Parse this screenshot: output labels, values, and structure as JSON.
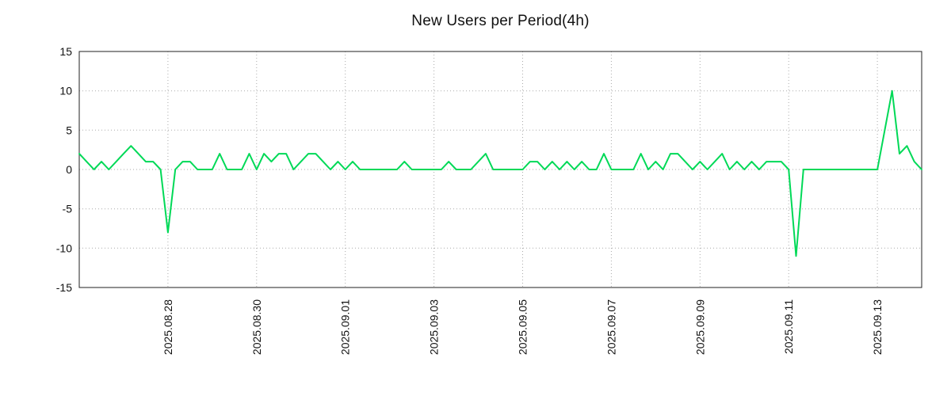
{
  "title": "New Users per Period(4h)",
  "colors": {
    "line": "#00d957",
    "grid": "#aaaaaa",
    "frame": "#222222",
    "text": "#111111",
    "background": "#ffffff"
  },
  "chart_data": {
    "type": "line",
    "title": "New Users per Period(4h)",
    "xlabel": "",
    "ylabel": "",
    "period": "4h",
    "grid": true,
    "legend": false,
    "ylim": [
      -15,
      15
    ],
    "yticks": [
      15,
      10,
      5,
      0,
      -5,
      -10,
      -15
    ],
    "x_tick_labels": [
      "2025.08.28",
      "2025.08.30",
      "2025.09.01",
      "2025.09.03",
      "2025.09.05",
      "2025.09.07",
      "2025.09.09",
      "2025.09.11",
      "2025.09.13"
    ],
    "x_tick_indices": [
      12,
      24,
      36,
      48,
      60,
      72,
      84,
      96,
      108
    ],
    "values": [
      2,
      1,
      0,
      1,
      0,
      1,
      2,
      3,
      2,
      1,
      1,
      0,
      -8,
      0,
      1,
      1,
      0,
      0,
      0,
      2,
      0,
      0,
      0,
      2,
      0,
      2,
      1,
      2,
      2,
      0,
      1,
      2,
      2,
      1,
      0,
      1,
      0,
      1,
      0,
      0,
      0,
      0,
      0,
      0,
      1,
      0,
      0,
      0,
      0,
      0,
      1,
      0,
      0,
      0,
      1,
      2,
      0,
      0,
      0,
      0,
      0,
      1,
      1,
      0,
      1,
      0,
      1,
      0,
      1,
      0,
      0,
      2,
      0,
      0,
      0,
      0,
      2,
      0,
      1,
      0,
      2,
      2,
      1,
      0,
      1,
      0,
      1,
      2,
      0,
      1,
      0,
      1,
      0,
      1,
      1,
      1,
      0,
      -11,
      0,
      0,
      0,
      0,
      0,
      0,
      0,
      0,
      0,
      0,
      0,
      5,
      10,
      2,
      3,
      1,
      0
    ]
  }
}
